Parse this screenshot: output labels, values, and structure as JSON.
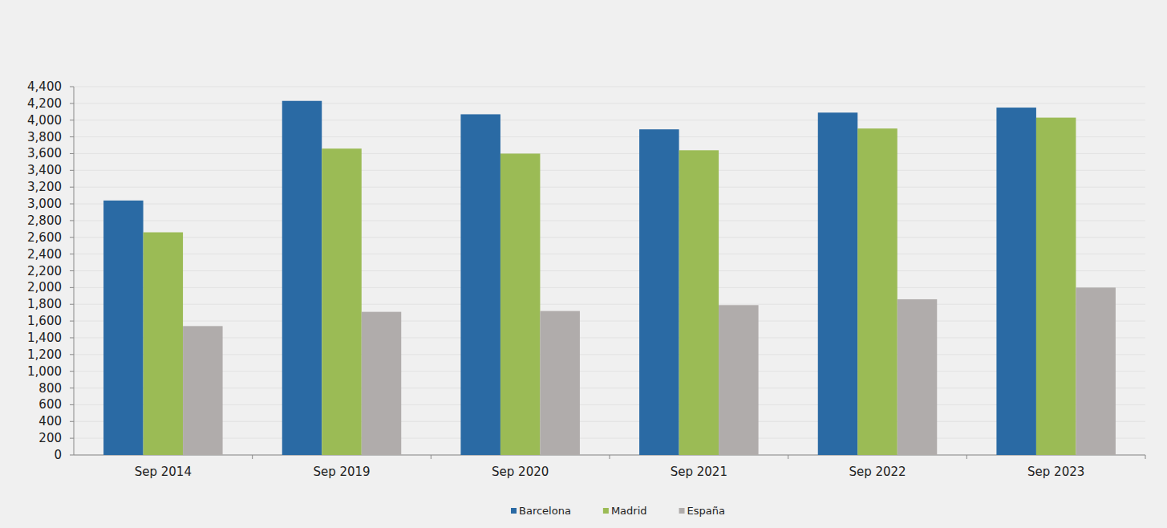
{
  "chart_data": {
    "type": "bar",
    "categories": [
      "Sep 2014",
      "Sep 2019",
      "Sep 2020",
      "Sep 2021",
      "Sep 2022",
      "Sep 2023"
    ],
    "series": [
      {
        "name": "Barcelona",
        "color": "#2a6aa4",
        "values": [
          3040,
          4230,
          4070,
          3890,
          4090,
          4150
        ]
      },
      {
        "name": "Madrid",
        "color": "#9bbb55",
        "values": [
          2660,
          3660,
          3600,
          3640,
          3900,
          4030
        ]
      },
      {
        "name": "España",
        "color": "#b0acab",
        "values": [
          1540,
          1710,
          1720,
          1790,
          1860,
          2000
        ]
      }
    ],
    "ylim": [
      0,
      4400
    ],
    "yticks": [
      0,
      200,
      400,
      600,
      800,
      {
        "value": 1000,
        "label": "1,000"
      },
      {
        "value": 1200,
        "label": "1,200"
      },
      {
        "value": 1400,
        "label": "1,400"
      },
      {
        "value": 1600,
        "label": "1,600"
      },
      {
        "value": 1800,
        "label": "1,800"
      },
      {
        "value": 2000,
        "label": "2,000"
      },
      {
        "value": 2200,
        "label": "2,200"
      },
      {
        "value": 2400,
        "label": "2,400"
      },
      {
        "value": 2600,
        "label": "2,600"
      },
      {
        "value": 2800,
        "label": "2,800"
      },
      {
        "value": 3000,
        "label": "3,000"
      },
      {
        "value": 3200,
        "label": "3,200"
      },
      {
        "value": 3400,
        "label": "3,400"
      },
      {
        "value": 3600,
        "label": "3,600"
      },
      {
        "value": 3800,
        "label": "3,800"
      },
      {
        "value": 4000,
        "label": "4,000"
      },
      {
        "value": 4200,
        "label": "4,200"
      },
      {
        "value": 4400,
        "label": "4,400"
      }
    ],
    "grid": true,
    "legend": "bottom"
  }
}
